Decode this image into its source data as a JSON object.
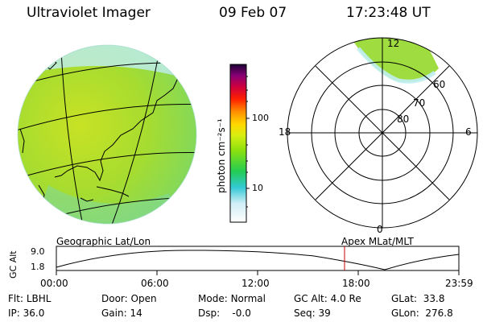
{
  "header": {
    "instrument": "Ultraviolet Imager",
    "date": "09 Feb 07",
    "time": "17:23:48 UT"
  },
  "colorbar": {
    "unit_label": "photon cm⁻²s⁻¹",
    "ticks": [
      "100",
      "10"
    ],
    "scale": "log"
  },
  "polar_plot": {
    "mlt_labels": {
      "top": "12",
      "left": "18",
      "right": "6",
      "bottom": "0"
    },
    "lat_labels": [
      "60",
      "70",
      "80"
    ]
  },
  "orbit_panel": {
    "left_title": "Geographic Lat/Lon",
    "right_title": "Apex  MLat/MLT",
    "ylabel": "GC Alt",
    "yticks": [
      "9.0",
      "1.8"
    ],
    "xticks": [
      "00:00",
      "06:00",
      "12:00",
      "18:00",
      "23:59"
    ],
    "current_marker_color": "#cc0000"
  },
  "status": {
    "row1": [
      {
        "label": "Flt:",
        "value": "LBHL"
      },
      {
        "label": "Door:",
        "value": "Open"
      },
      {
        "label": "Mode:",
        "value": "Normal"
      },
      {
        "label": "GC Alt:",
        "value": "4.0 Re"
      },
      {
        "label": "GLat:",
        "value": "33.8"
      }
    ],
    "row2": [
      {
        "label": "IP:",
        "value": "36.0"
      },
      {
        "label": "Gain:",
        "value": "14"
      },
      {
        "label": "Dsp:",
        "value": "-0.0"
      },
      {
        "label": "Seq:",
        "value": "39"
      },
      {
        "label": "GLon:",
        "value": "276.8"
      }
    ]
  }
}
